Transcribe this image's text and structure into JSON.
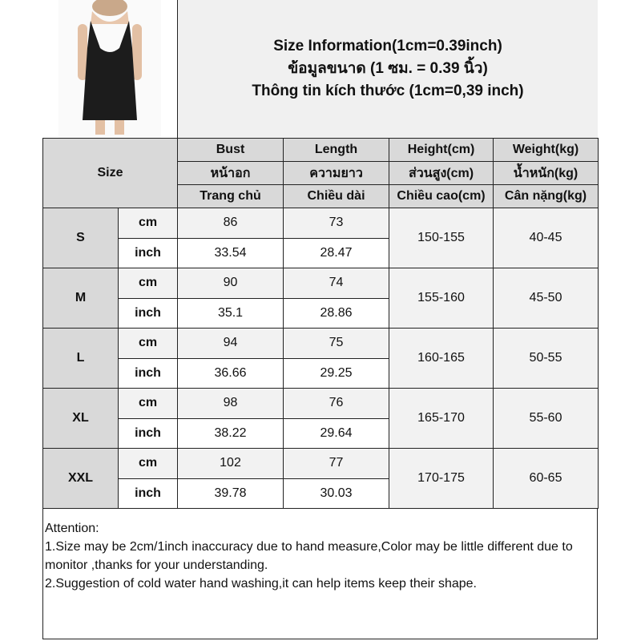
{
  "title_lines": [
    "Size Information(1cm=0.39inch)",
    "ข้อมูลขนาด (1 ซม. = 0.39 นิ้ว)",
    "Thông tin kích thước (1cm=0,39 inch)"
  ],
  "size_label": "Size",
  "headers": [
    [
      "Bust",
      "Length",
      "Height(cm)",
      "Weight(kg)"
    ],
    [
      "หน้าอก",
      "ความยาว",
      "ส่วนสูง(cm)",
      "น้ำหนัก(kg)"
    ],
    [
      "Trang chủ",
      "Chiều dài",
      "Chiều cao(cm)",
      "Cân nặng(kg)"
    ]
  ],
  "units": {
    "cm": "cm",
    "inch": "inch"
  },
  "rows": [
    {
      "size": "S",
      "bust_cm": "86",
      "length_cm": "73",
      "bust_in": "33.54",
      "length_in": "28.47",
      "height": "150-155",
      "weight": "40-45"
    },
    {
      "size": "M",
      "bust_cm": "90",
      "length_cm": "74",
      "bust_in": "35.1",
      "length_in": "28.86",
      "height": "155-160",
      "weight": "45-50"
    },
    {
      "size": "L",
      "bust_cm": "94",
      "length_cm": "75",
      "bust_in": "36.66",
      "length_in": "29.25",
      "height": "160-165",
      "weight": "50-55"
    },
    {
      "size": "XL",
      "bust_cm": "98",
      "length_cm": "76",
      "bust_in": "38.22",
      "length_in": "29.64",
      "height": "165-170",
      "weight": "55-60"
    },
    {
      "size": "XXL",
      "bust_cm": "102",
      "length_cm": "77",
      "bust_in": "39.78",
      "length_in": "30.03",
      "height": "170-175",
      "weight": "60-65"
    }
  ],
  "attention": {
    "heading": "Attention:",
    "line1": "1.Size may be 2cm/1inch inaccuracy due to hand measure,Color may be little different due to monitor ,thanks for your understanding.",
    "line2": "2.Suggestion of cold water hand washing,it can help items keep their shape."
  },
  "colors": {
    "header_bg": "#d9d9d9",
    "title_bg": "#f0f0f0",
    "cm_row_bg": "#f2f2f2",
    "dress": "#1c1c1c"
  }
}
